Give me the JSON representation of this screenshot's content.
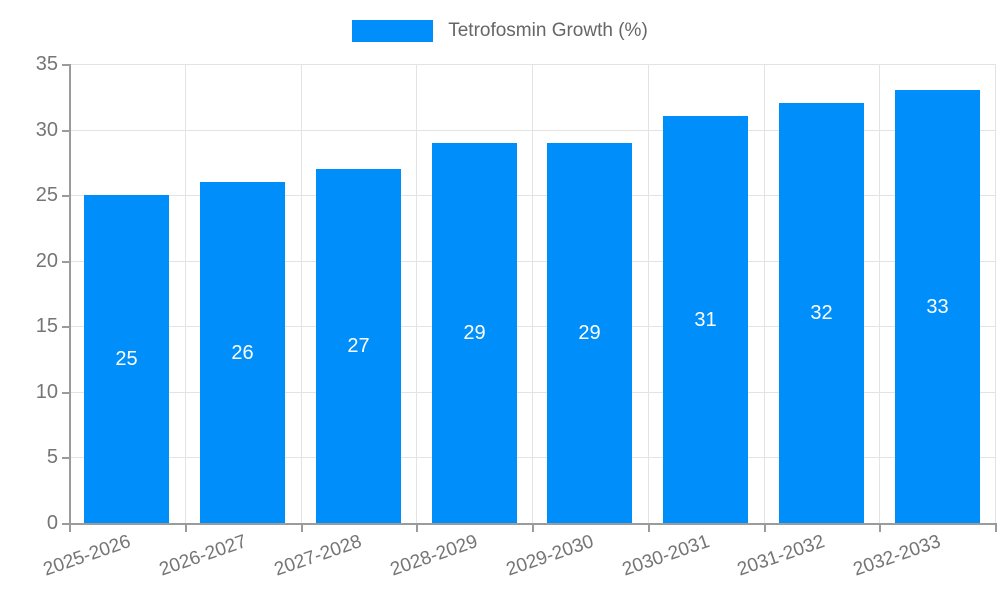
{
  "legend": {
    "label": "Tetrofosmin Growth (%)"
  },
  "chart_data": {
    "type": "bar",
    "title": "Tetrofosmin Growth (%)",
    "categories": [
      "2025-2026",
      "2026-2027",
      "2027-2028",
      "2028-2029",
      "2029-2030",
      "2030-2031",
      "2031-2032",
      "2032-2033"
    ],
    "values": [
      25,
      26,
      27,
      29,
      29,
      31,
      32,
      33
    ],
    "bar_labels": [
      "25",
      "26",
      "27",
      "29",
      "29",
      "31",
      "32",
      "33"
    ],
    "xlabel": "",
    "ylabel": "",
    "ylim": [
      0,
      35
    ],
    "yticks": [
      0,
      5,
      10,
      15,
      20,
      25,
      30,
      35
    ],
    "grid": true,
    "legend_position": "top-center",
    "colors": {
      "bar": "#008ffa",
      "bar_label": "#ffffff",
      "axis_line": "#9b9b9b",
      "grid_line": "#e3e3e3",
      "tick_label": "#757575",
      "legend_text": "#666666"
    }
  }
}
